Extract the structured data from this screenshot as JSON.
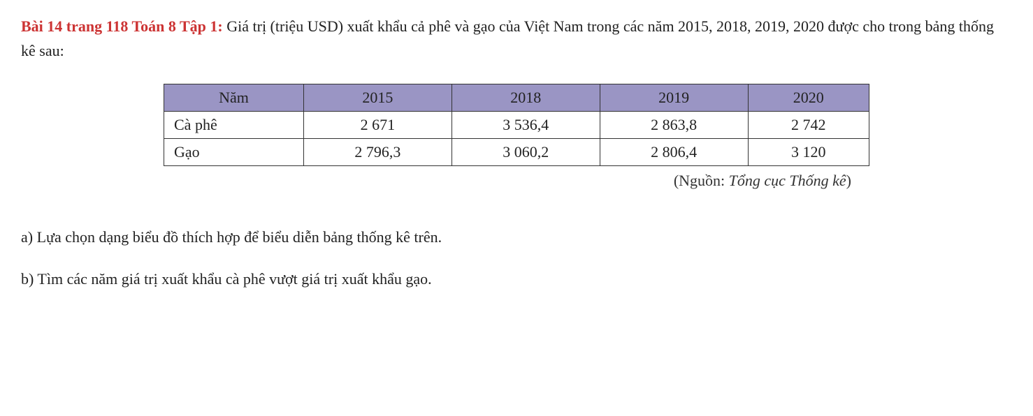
{
  "title_prefix": "Bài 14 trang 118 Toán 8 Tập 1:",
  "intro_text": " Giá trị (triệu USD) xuất khẩu cả phê và gạo của Việt Nam trong các năm 2015, 2018, 2019, 2020 được cho trong bảng thống kê sau:",
  "table": {
    "header_colors": {
      "background": "#9a95c4",
      "border": "#333333"
    },
    "columns": [
      "Năm",
      "2015",
      "2018",
      "2019",
      "2020"
    ],
    "rows": [
      {
        "label": "Cà phê",
        "values": [
          "2 671",
          "3 536,4",
          "2 863,8",
          "2 742"
        ]
      },
      {
        "label": "Gạo",
        "values": [
          "2 796,3",
          "3 060,2",
          "2 806,4",
          "3 120"
        ]
      }
    ]
  },
  "source_prefix": "(Nguồn: ",
  "source_italic": "Tổng cục Thống kê",
  "source_suffix": ")",
  "question_a": "a) Lựa chọn dạng biểu đồ thích hợp để biểu diễn bảng thống kê trên.",
  "question_b": "b) Tìm các năm giá trị xuất khẩu cà phê vượt giá trị xuất khẩu gạo."
}
